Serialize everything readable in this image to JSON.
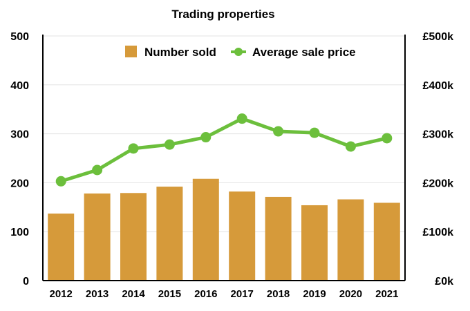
{
  "chart_data": {
    "type": "bar+line",
    "title": "Trading properties",
    "xlabel": "",
    "ylabel_left": "",
    "ylabel_right": "",
    "categories": [
      "2012",
      "2013",
      "2014",
      "2015",
      "2016",
      "2017",
      "2018",
      "2019",
      "2020",
      "2021"
    ],
    "series": [
      {
        "name": "Number sold",
        "type": "bar",
        "axis": "left",
        "color": "#D69A3A",
        "values": [
          137,
          178,
          179,
          192,
          208,
          182,
          171,
          154,
          166,
          159
        ]
      },
      {
        "name": "Average sale price",
        "type": "line",
        "axis": "right",
        "color": "#6CBF3C",
        "values": [
          203000,
          226000,
          270000,
          278000,
          293000,
          331000,
          305000,
          302000,
          274000,
          291000
        ]
      }
    ],
    "ylim_left": [
      0,
      500
    ],
    "ylim_right": [
      0,
      500000
    ],
    "left_ticks": [
      "0",
      "100",
      "200",
      "300",
      "400",
      "500"
    ],
    "right_ticks": [
      "£0k",
      "£100k",
      "£200k",
      "£300k",
      "£400k",
      "£500k"
    ],
    "grid": true,
    "legend_position": "top-center"
  }
}
